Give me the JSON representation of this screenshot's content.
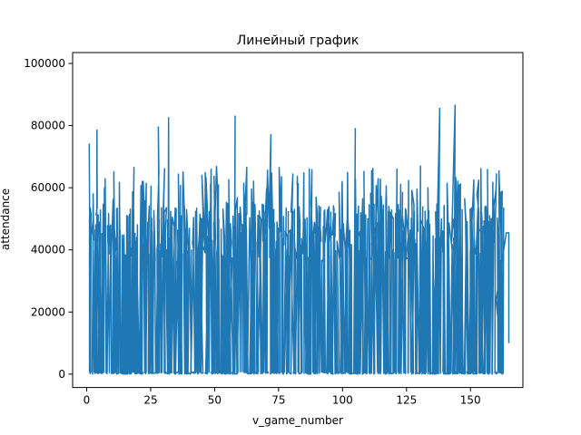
{
  "chart_data": {
    "type": "line",
    "title": "Линейный график",
    "xlabel": "v_game_number",
    "ylabel": "attendance",
    "xlim": [
      -5.5,
      170.5
    ],
    "ylim": [
      -4300,
      103500
    ],
    "xticks": [
      0,
      25,
      50,
      75,
      100,
      125,
      150
    ],
    "yticks": [
      0,
      20000,
      40000,
      60000,
      80000,
      100000
    ],
    "xtick_labels": [
      "0",
      "25",
      "50",
      "75",
      "100",
      "125",
      "150"
    ],
    "ytick_labels": [
      "0",
      "20000",
      "40000",
      "60000",
      "80000",
      "100000"
    ],
    "grid": false,
    "legend": "none",
    "series": [
      {
        "color": "#1f77b4",
        "x_range": [
          1,
          165
        ],
        "y_range": [
          0,
          86500
        ],
        "dense_band": [
          0,
          55000
        ],
        "notable_peaks": [
          {
            "x": 1,
            "y": 74000
          },
          {
            "x": 4,
            "y": 78500
          },
          {
            "x": 28,
            "y": 79500
          },
          {
            "x": 32,
            "y": 82500
          },
          {
            "x": 58,
            "y": 83000
          },
          {
            "x": 72,
            "y": 77000
          },
          {
            "x": 105,
            "y": 79000
          },
          {
            "x": 138,
            "y": 85500
          },
          {
            "x": 144,
            "y": 86500
          }
        ],
        "tail": [
          {
            "x": 160,
            "y": 24000
          },
          {
            "x": 163,
            "y": 40000
          },
          {
            "x": 164,
            "y": 45500
          },
          {
            "x": 165,
            "y": 45500
          },
          {
            "x": 165,
            "y": 10000
          }
        ]
      }
    ]
  }
}
